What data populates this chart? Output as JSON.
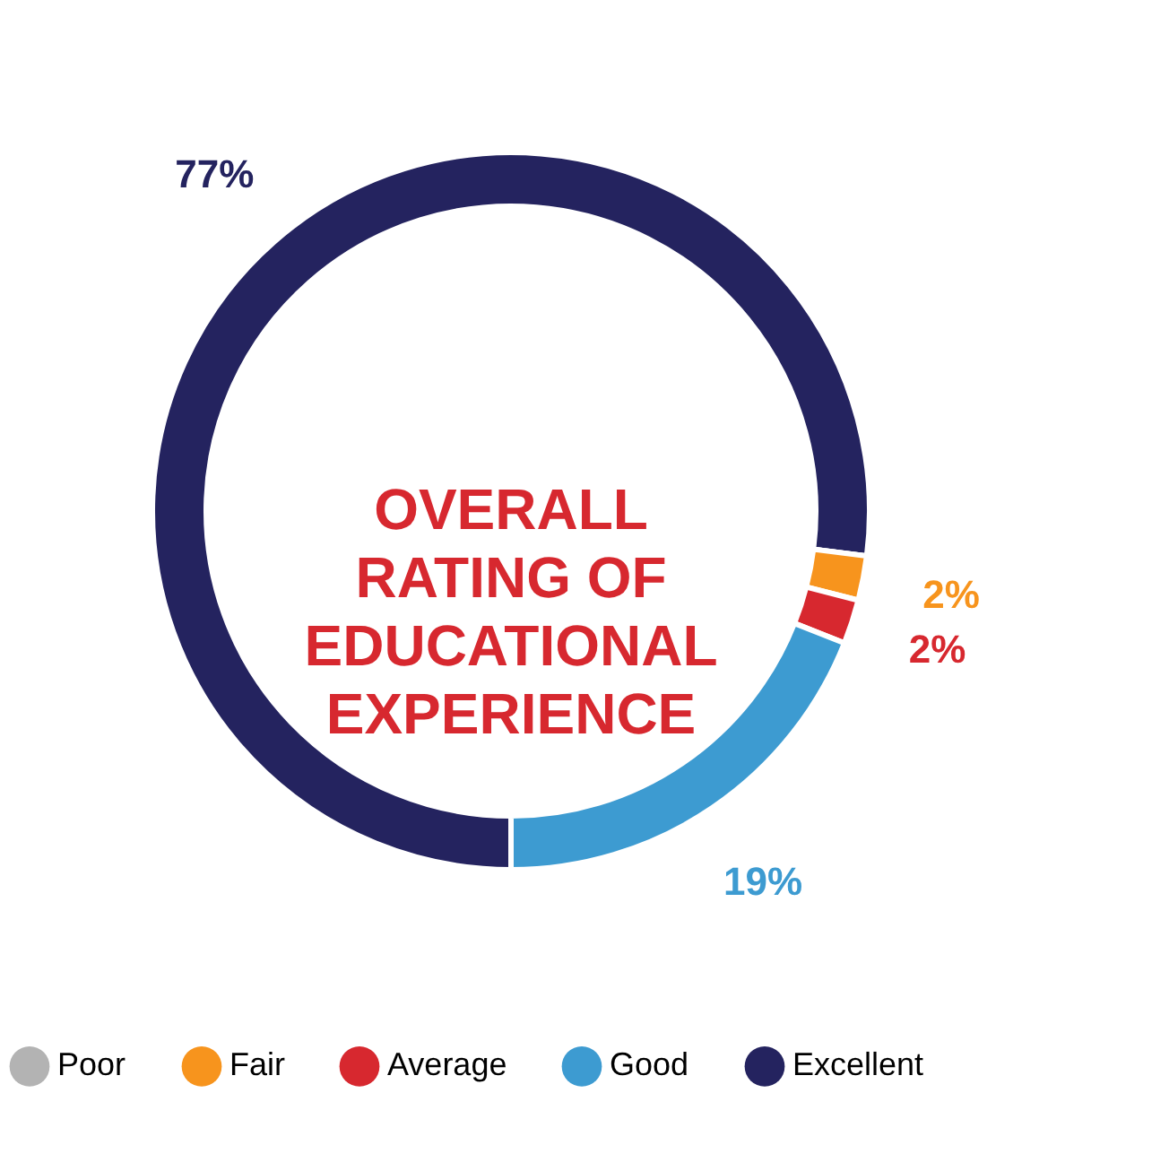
{
  "chart_data": {
    "type": "donut",
    "title": "OVERALL\nRATING OF\nEDUCATIONAL\nEXPERIENCE",
    "categories": [
      "Poor",
      "Fair",
      "Average",
      "Good",
      "Excellent"
    ],
    "values": [
      0,
      2,
      2,
      19,
      77
    ],
    "colors": [
      "#b3b3b3",
      "#f7941d",
      "#d7282f",
      "#3d9bd1",
      "#24235f"
    ],
    "value_labels": [
      null,
      "2%",
      "2%",
      "19%",
      "77%"
    ],
    "legend": "bottom"
  }
}
